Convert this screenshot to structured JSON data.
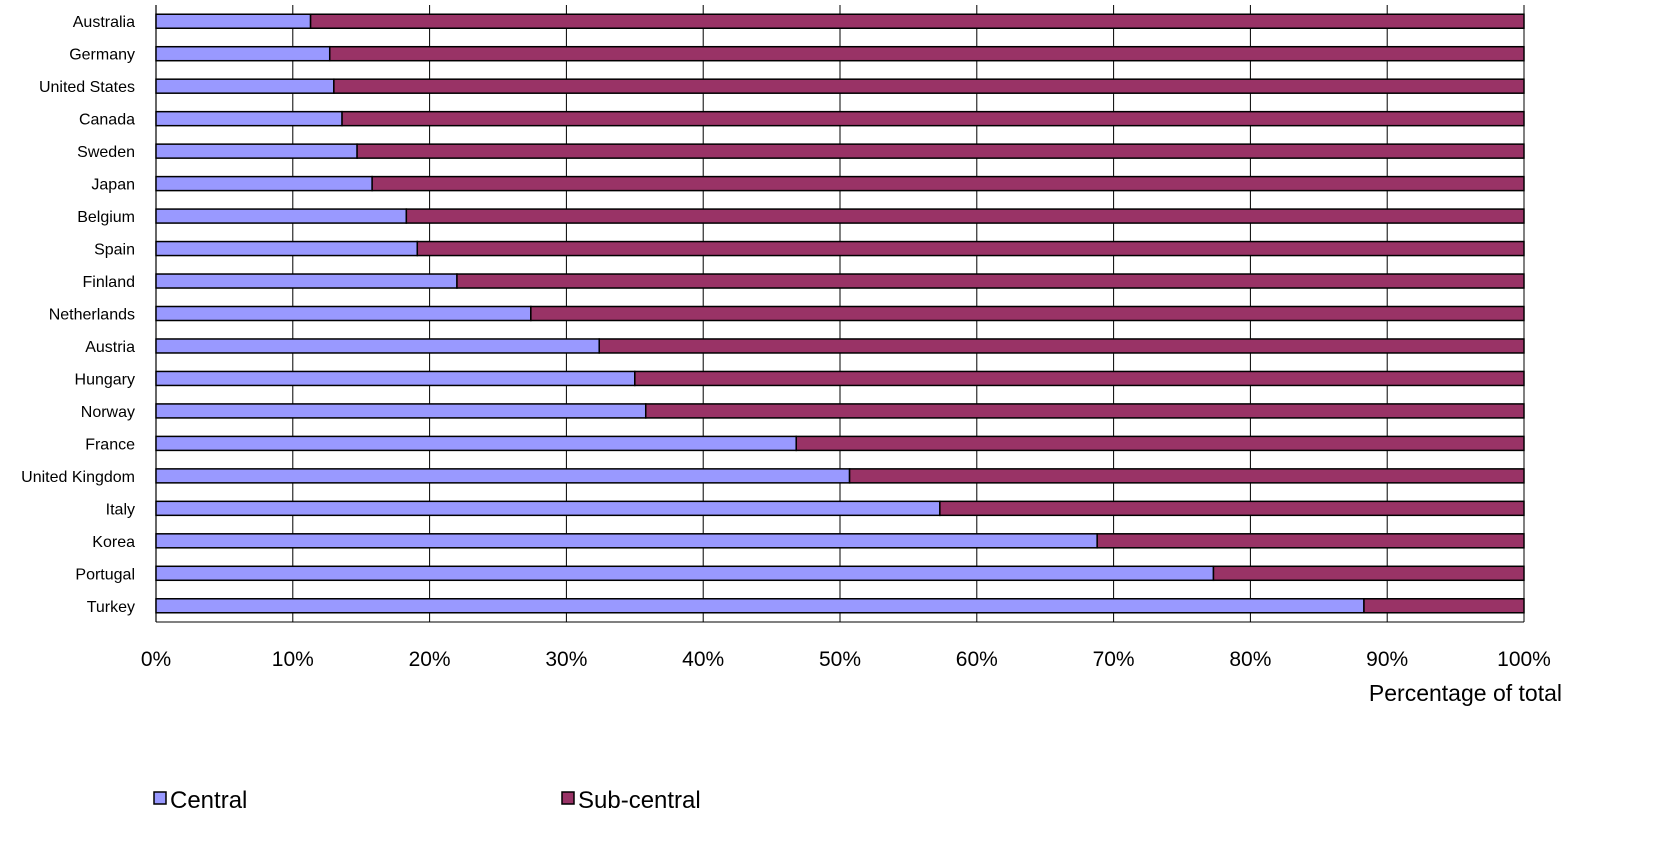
{
  "chart_data": {
    "type": "bar",
    "orientation": "horizontal",
    "stacked": true,
    "categories": [
      "Australia",
      "Germany",
      "United States",
      "Canada",
      "Sweden",
      "Japan",
      "Belgium",
      "Spain",
      "Finland",
      "Netherlands",
      "Austria",
      "Hungary",
      "Norway",
      "France",
      "United Kingdom",
      "Italy",
      "Korea",
      "Portugal",
      "Turkey"
    ],
    "series": [
      {
        "name": "Central",
        "color": "#9999ff",
        "values": [
          11.3,
          12.7,
          13.0,
          13.6,
          14.7,
          15.8,
          18.3,
          19.1,
          22.0,
          27.4,
          32.4,
          35.0,
          35.8,
          46.8,
          50.7,
          57.3,
          68.8,
          77.3,
          88.3
        ]
      },
      {
        "name": "Sub-central",
        "color": "#993366",
        "values": [
          88.7,
          87.3,
          87.0,
          86.4,
          85.3,
          84.2,
          81.7,
          80.9,
          78.0,
          72.6,
          67.6,
          65.0,
          64.2,
          53.2,
          49.3,
          42.7,
          31.2,
          22.7,
          11.7
        ]
      }
    ],
    "xlim": [
      0,
      100
    ],
    "xticks": [
      "0%",
      "10%",
      "20%",
      "30%",
      "40%",
      "50%",
      "60%",
      "70%",
      "80%",
      "90%",
      "100%"
    ],
    "xlabel": "Percentage of total",
    "ylabel": "",
    "title": "",
    "grid": true,
    "legend_position": "bottom-left"
  }
}
